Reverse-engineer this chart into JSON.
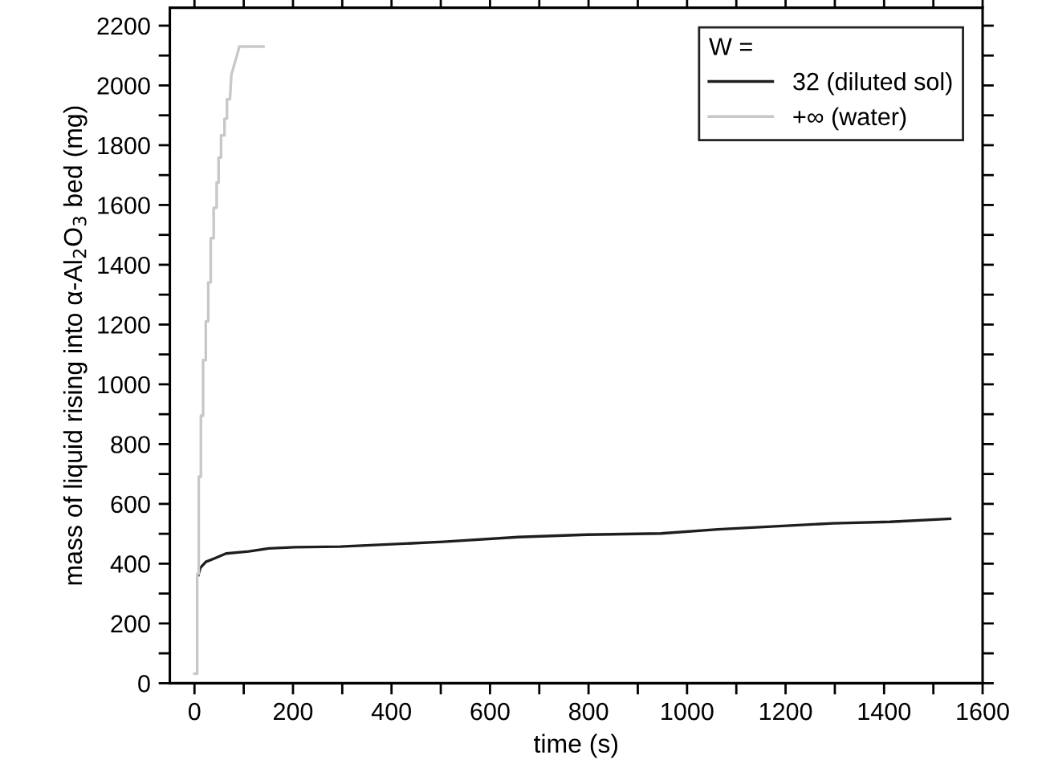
{
  "chart_data": {
    "type": "line",
    "xlabel": "time (s)",
    "ylabel": "mass of liquid rising into α-Al$_{2}$O$_{3}$ bed (mg)",
    "legend_title": "W =",
    "legend": "top right",
    "grid": false,
    "xlim": [
      -50,
      1600
    ],
    "ylim": [
      0,
      2260
    ],
    "xticks": [
      0,
      {
        "value": 100,
        "label": null
      },
      200,
      {
        "value": 300,
        "label": null
      },
      400,
      {
        "value": 500,
        "label": null
      },
      600,
      {
        "value": 700,
        "label": null
      },
      800,
      {
        "value": 900,
        "label": null
      },
      1000,
      {
        "value": 1100,
        "label": null
      },
      1200,
      {
        "value": 1300,
        "label": null
      },
      1400,
      {
        "value": 1500,
        "label": null
      },
      1600
    ],
    "yticks": [
      0,
      {
        "value": 100,
        "label": null
      },
      200,
      {
        "value": 300,
        "label": null
      },
      400,
      {
        "value": 500,
        "label": null
      },
      600,
      {
        "value": 700,
        "label": null
      },
      800,
      {
        "value": 900,
        "label": null
      },
      1000,
      {
        "value": 1100,
        "label": null
      },
      1200,
      {
        "value": 1300,
        "label": null
      },
      1400,
      {
        "value": 1500,
        "label": null
      },
      1600,
      {
        "value": 1700,
        "label": null
      },
      1800,
      {
        "value": 1900,
        "label": null
      },
      2000,
      {
        "value": 2100,
        "label": null
      },
      2200
    ],
    "series": [
      {
        "name": "32 (diluted sol)",
        "color": "#1e1e1e",
        "x": [
          8,
          12,
          23,
          41,
          64,
          110,
          151,
          203,
          296,
          401,
          505,
          657,
          796,
          947,
          1063,
          1179,
          1296,
          1412,
          1534
        ],
        "values": [
          362,
          386,
          406,
          418,
          434,
          441,
          451,
          455,
          457,
          465,
          473,
          489,
          497,
          501,
          515,
          525,
          535,
          540,
          550
        ]
      },
      {
        "name": "+∞ (water)",
        "color": "#c8c8c8",
        "x": [
          0,
          5.5,
          5.5,
          8.7,
          8.7,
          13,
          13,
          17.5,
          17.5,
          23,
          23,
          28,
          28,
          33,
          33,
          39,
          39,
          45,
          45,
          49,
          49,
          54,
          54,
          61,
          61,
          66,
          66,
          72,
          75,
          85,
          91,
          100,
          140
        ],
        "values": [
          32,
          32,
          366,
          366,
          691,
          691,
          895,
          895,
          1081,
          1081,
          1211,
          1211,
          1341,
          1341,
          1489,
          1489,
          1591,
          1591,
          1675,
          1675,
          1759,
          1759,
          1833,
          1833,
          1889,
          1889,
          1954,
          1954,
          2037,
          2093,
          2130,
          2130,
          2130
        ]
      }
    ]
  }
}
